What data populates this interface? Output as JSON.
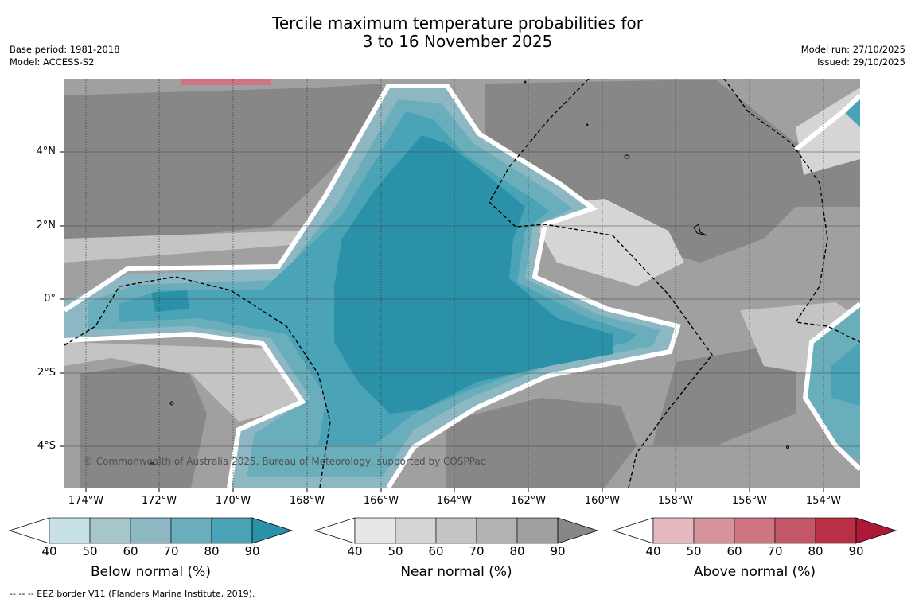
{
  "title_line1": "Tercile maximum temperature probabilities for",
  "title_line2": "3 to 16 November 2025",
  "base_period": "Base period: 1981-2018",
  "model": "Model: ACCESS-S2",
  "model_run": "Model run: 27/10/2025",
  "issued": "Issued: 29/10/2025",
  "copyright": "© Commonwealth of Australia 2025, Bureau of Meteorology, supported by COSPPac",
  "footnote": "--  --  -- EEZ border V11 (Flanders Marine Institute, 2019).",
  "lat_labels": [
    "4°N",
    "2°N",
    "0°",
    "2°S",
    "4°S"
  ],
  "lon_labels": [
    "174°W",
    "172°W",
    "170°W",
    "168°W",
    "166°W",
    "164°W",
    "162°W",
    "160°W",
    "158°W",
    "156°W",
    "154°W"
  ],
  "colorbars": [
    {
      "title": "Below normal (%)",
      "ticks": [
        "40",
        "50",
        "60",
        "70",
        "80",
        "90"
      ],
      "colors": [
        "#ffffff",
        "#c6e2e8",
        "#a6c6cb",
        "#8cb7c3",
        "#6aaebb",
        "#4aa3b6",
        "#2a91a8"
      ]
    },
    {
      "title": "Near normal (%)",
      "ticks": [
        "40",
        "50",
        "60",
        "70",
        "80",
        "90"
      ],
      "colors": [
        "#ffffff",
        "#e7e7e7",
        "#d5d5d5",
        "#c4c4c4",
        "#b2b2b2",
        "#a0a0a0",
        "#878787"
      ]
    },
    {
      "title": "Above normal (%)",
      "ticks": [
        "40",
        "50",
        "60",
        "70",
        "80",
        "90"
      ],
      "colors": [
        "#ffffff",
        "#e3b9bf",
        "#d7939c",
        "#cd7580",
        "#c45767",
        "#b93045",
        "#ad1a38"
      ]
    }
  ]
}
